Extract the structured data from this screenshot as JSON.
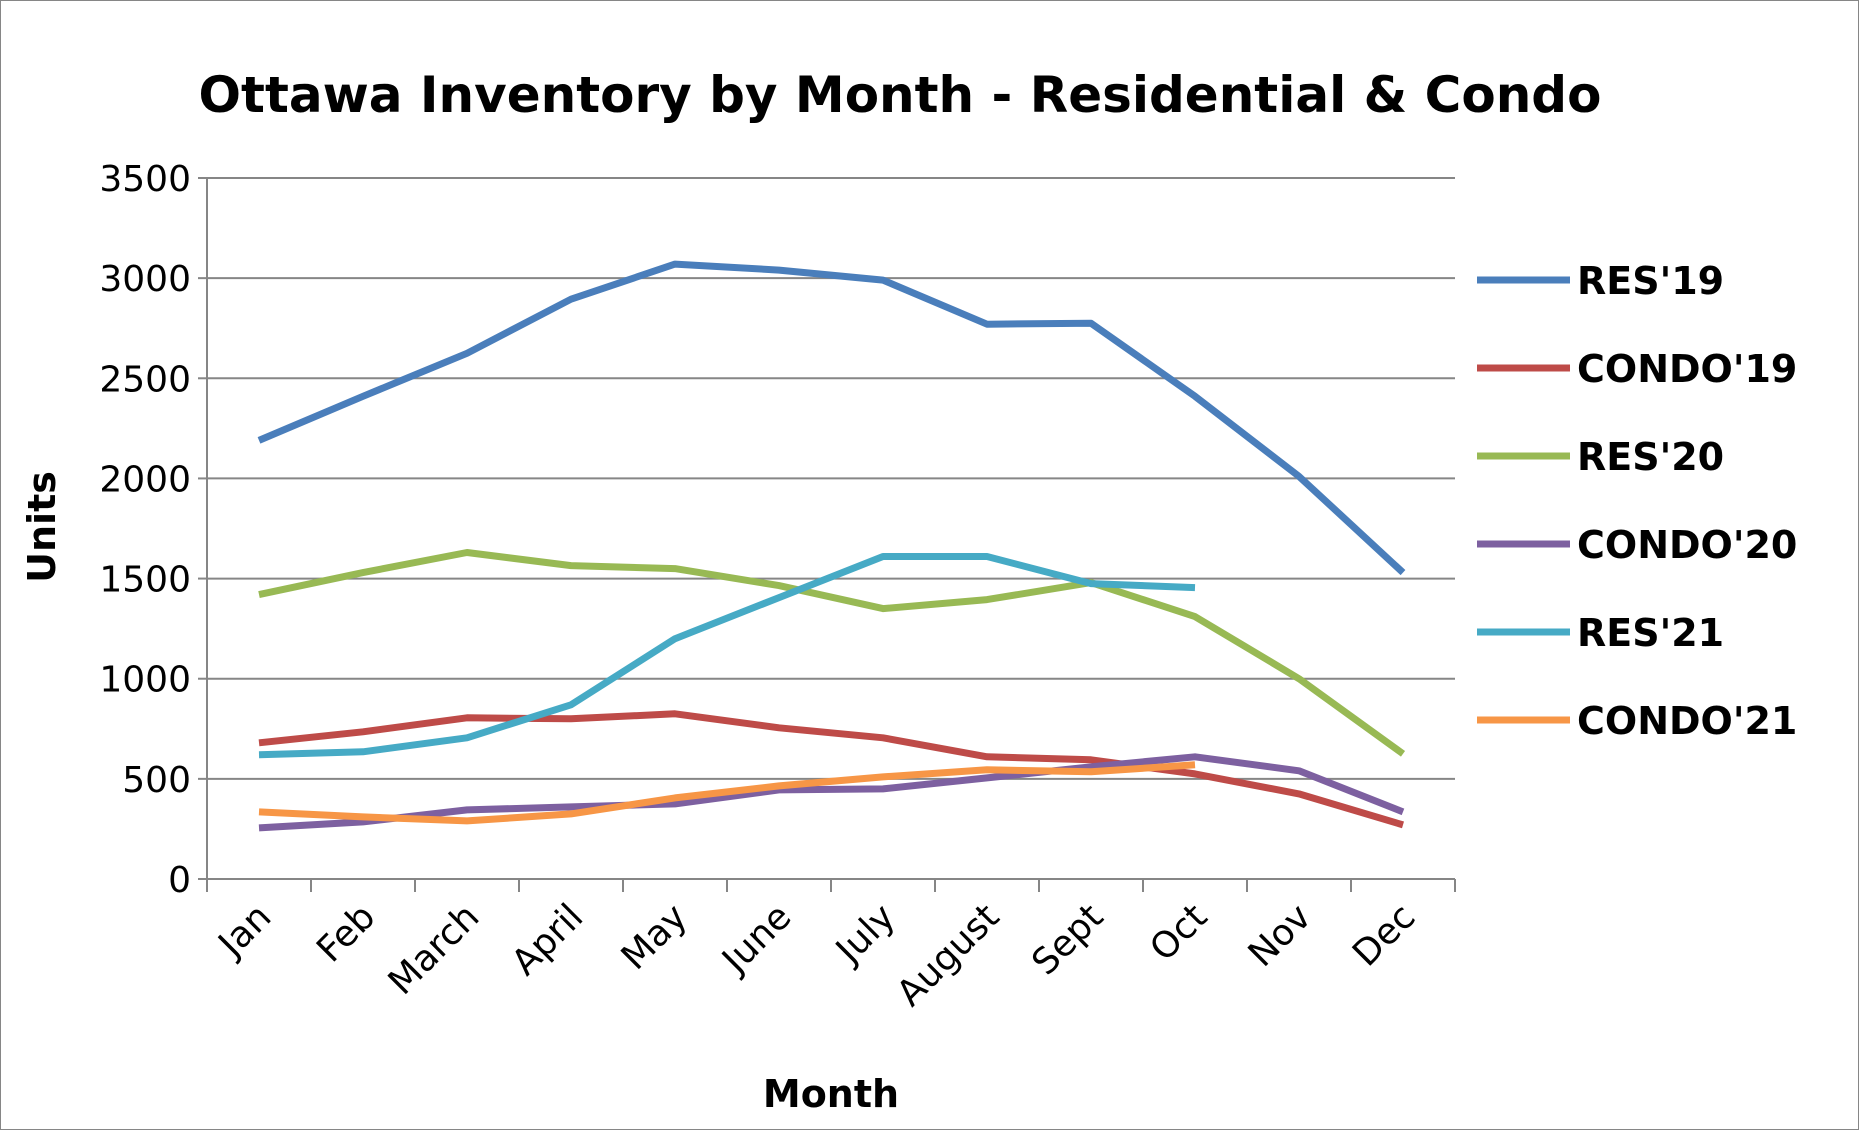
{
  "chart_data": {
    "type": "line",
    "title": "Ottawa Inventory by Month - Residential & Condo",
    "xlabel": "Month",
    "ylabel": "Units",
    "ylim": [
      0,
      3500
    ],
    "yticks": [
      "0",
      "500",
      "1000",
      "1500",
      "2000",
      "2500",
      "3000",
      "3500"
    ],
    "grid": true,
    "legend_position": "right",
    "categories": [
      "Jan",
      "Feb",
      "March",
      "April",
      "May",
      "June",
      "July",
      "August",
      "Sept",
      "Oct",
      "Nov",
      "Dec"
    ],
    "series": [
      {
        "name": "RES'19",
        "color": "#4A7EBB",
        "values": [
          2190,
          2410,
          2625,
          2895,
          3070,
          3040,
          2990,
          2770,
          2775,
          2410,
          2010,
          1530
        ]
      },
      {
        "name": "CONDO'19",
        "color": "#BE4B48",
        "values": [
          680,
          735,
          805,
          800,
          825,
          755,
          705,
          610,
          595,
          525,
          425,
          270
        ]
      },
      {
        "name": "RES'20",
        "color": "#98B954",
        "values": [
          1420,
          1530,
          1630,
          1565,
          1550,
          1465,
          1350,
          1395,
          1480,
          1310,
          1000,
          625
        ]
      },
      {
        "name": "CONDO'20",
        "color": "#7D60A0",
        "values": [
          255,
          285,
          345,
          360,
          375,
          445,
          450,
          505,
          560,
          610,
          540,
          335
        ]
      },
      {
        "name": "RES'21",
        "color": "#46AAC5",
        "values": [
          620,
          635,
          705,
          870,
          1200,
          1405,
          1610,
          1610,
          1475,
          1455,
          null,
          null
        ]
      },
      {
        "name": "CONDO'21",
        "color": "#F79646",
        "values": [
          335,
          310,
          290,
          325,
          405,
          465,
          510,
          545,
          535,
          570,
          null,
          null
        ]
      }
    ]
  }
}
